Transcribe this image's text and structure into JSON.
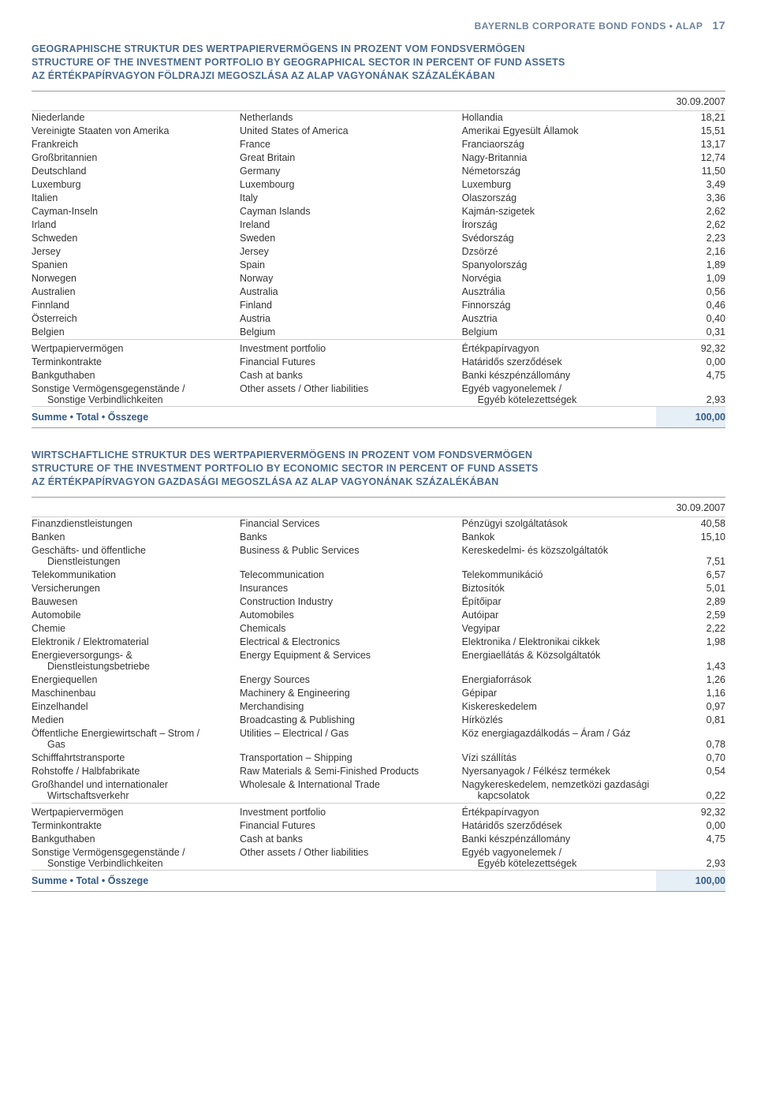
{
  "header": {
    "brand": "BAYERNLB CORPORATE BOND FONDS • ALAP",
    "page": "17"
  },
  "date": "30.09.2007",
  "sec1": {
    "title_de": "GEOGRAPHISCHE STRUKTUR DES WERTPAPIERVERMÖGENS IN PROZENT VOM FONDSVERMÖGEN",
    "title_en": "STRUCTURE OF THE INVESTMENT PORTFOLIO BY GEOGRAPHICAL SECTOR IN PERCENT OF FUND ASSETS",
    "title_hu": "AZ ÉRTÉKPAPÍRVAGYON FÖLDRAJZI MEGOSZLÁSA AZ ALAP VAGYONÁNAK SZÁZALÉKÁBAN",
    "rows": [
      {
        "de": "Niederlande",
        "en": "Netherlands",
        "hu": "Hollandia",
        "v": "18,21"
      },
      {
        "de": "Vereinigte Staaten von Amerika",
        "en": "United States of America",
        "hu": "Amerikai Egyesült Államok",
        "v": "15,51"
      },
      {
        "de": "Frankreich",
        "en": "France",
        "hu": "Franciaország",
        "v": "13,17"
      },
      {
        "de": "Großbritannien",
        "en": "Great Britain",
        "hu": "Nagy-Britannia",
        "v": "12,74"
      },
      {
        "de": "Deutschland",
        "en": "Germany",
        "hu": "Németország",
        "v": "11,50"
      },
      {
        "de": "Luxemburg",
        "en": "Luxembourg",
        "hu": "Luxemburg",
        "v": "3,49"
      },
      {
        "de": "Italien",
        "en": "Italy",
        "hu": "Olaszország",
        "v": "3,36"
      },
      {
        "de": "Cayman-Inseln",
        "en": "Cayman Islands",
        "hu": "Kajmán-szigetek",
        "v": "2,62"
      },
      {
        "de": "Irland",
        "en": "Ireland",
        "hu": "Írország",
        "v": "2,62"
      },
      {
        "de": "Schweden",
        "en": "Sweden",
        "hu": "Svédország",
        "v": "2,23"
      },
      {
        "de": "Jersey",
        "en": "Jersey",
        "hu": "Dzsörzé",
        "v": "2,16"
      },
      {
        "de": "Spanien",
        "en": "Spain",
        "hu": "Spanyolország",
        "v": "1,89"
      },
      {
        "de": "Norwegen",
        "en": "Norway",
        "hu": "Norvégia",
        "v": "1,09"
      },
      {
        "de": "Australien",
        "en": "Australia",
        "hu": "Ausztrália",
        "v": "0,56"
      },
      {
        "de": "Finnland",
        "en": "Finland",
        "hu": "Finnország",
        "v": "0,46"
      },
      {
        "de": "Österreich",
        "en": "Austria",
        "hu": "Ausztria",
        "v": "0,40"
      },
      {
        "de": "Belgien",
        "en": "Belgium",
        "hu": "Belgium",
        "v": "0,31"
      }
    ],
    "subs": [
      {
        "de": "Wertpapiervermögen",
        "en": "Investment portfolio",
        "hu": "Értékpapírvagyon",
        "v": "92,32"
      },
      {
        "de": "Terminkontrakte",
        "en": "Financial Futures",
        "hu": "Határidős szerződések",
        "v": "0,00"
      },
      {
        "de": "Bankguthaben",
        "en": "Cash at banks",
        "hu": "Banki készpénzállomány",
        "v": "4,75"
      },
      {
        "de": "Sonstige Vermögensgegenstände /",
        "de2": "Sonstige Verbindlichkeiten",
        "en": "Other assets / Other liabilities",
        "hu": "Egyéb vagyonelemek /",
        "hu2": "Egyéb kötelezettségek",
        "v": "2,93"
      }
    ],
    "sum": {
      "label": "Summe • Total • Ősszege",
      "v": "100,00"
    }
  },
  "sec2": {
    "title_de": "WIRTSCHAFTLICHE STRUKTUR DES WERTPAPIERVERMÖGENS IN PROZENT VOM FONDSVERMÖGEN",
    "title_en": "STRUCTURE OF THE INVESTMENT PORTFOLIO BY ECONOMIC SECTOR IN PERCENT OF FUND ASSETS",
    "title_hu": "AZ ÉRTÉKPAPÍRVAGYON GAZDASÁGI MEGOSZLÁSA AZ ALAP VAGYONÁNAK SZÁZALÉKÁBAN",
    "rows": [
      {
        "de": "Finanzdienstleistungen",
        "en": "Financial Services",
        "hu": "Pénzügyi szolgáltatások",
        "v": "40,58"
      },
      {
        "de": "Banken",
        "en": "Banks",
        "hu": "Bankok",
        "v": "15,10"
      },
      {
        "de": "Geschäfts- und öffentliche",
        "de2": "Dienstleistungen",
        "en": "Business & Public Services",
        "hu": "Kereskedelmi- és közszolgáltatók",
        "v": "7,51"
      },
      {
        "de": "Telekommunikation",
        "en": "Telecommunication",
        "hu": "Telekommunikáció",
        "v": "6,57"
      },
      {
        "de": "Versicherungen",
        "en": "Insurances",
        "hu": "Biztosítók",
        "v": "5,01"
      },
      {
        "de": "Bauwesen",
        "en": "Construction Industry",
        "hu": "Építőipar",
        "v": "2,89"
      },
      {
        "de": "Automobile",
        "en": "Automobiles",
        "hu": "Autóipar",
        "v": "2,59"
      },
      {
        "de": "Chemie",
        "en": "Chemicals",
        "hu": "Vegyipar",
        "v": "2,22"
      },
      {
        "de": "Elektronik / Elektromaterial",
        "en": "Electrical & Electronics",
        "hu": "Elektronika / Elektronikai cikkek",
        "v": "1,98"
      },
      {
        "de": "Energieversorgungs- &",
        "de2": "Dienstleistungsbetriebe",
        "en": "Energy Equipment & Services",
        "hu": "Energiaellátás & Közsolgáltatók",
        "v": "1,43"
      },
      {
        "de": "Energiequellen",
        "en": "Energy Sources",
        "hu": "Energiaforrások",
        "v": "1,26"
      },
      {
        "de": "Maschinenbau",
        "en": "Machinery & Engineering",
        "hu": "Gépipar",
        "v": "1,16"
      },
      {
        "de": "Einzelhandel",
        "en": "Merchandising",
        "hu": "Kiskereskedelem",
        "v": "0,97"
      },
      {
        "de": "Medien",
        "en": "Broadcasting & Publishing",
        "hu": "Hírközlés",
        "v": "0,81"
      },
      {
        "de": "Öffentliche Energiewirtschaft – Strom /",
        "de2": "Gas",
        "en": "Utilities – Electrical / Gas",
        "hu": "Köz energiagazdálkodás – Áram / Gáz",
        "v": "0,78"
      },
      {
        "de": "Schifffahrtstransporte",
        "en": "Transportation – Shipping",
        "hu": "Vízi szállítás",
        "v": "0,70"
      },
      {
        "de": "Rohstoffe / Halbfabrikate",
        "en": "Raw Materials & Semi-Finished Products",
        "hu": "Nyersanyagok / Félkész termékek",
        "v": "0,54"
      },
      {
        "de": "Großhandel und internationaler",
        "de2": "Wirtschaftsverkehr",
        "en": "Wholesale & International Trade",
        "hu": "Nagykereskedelem, nemzetközi gazdasági",
        "hu2": "kapcsolatok",
        "v": "0,22"
      }
    ],
    "subs": [
      {
        "de": "Wertpapiervermögen",
        "en": "Investment portfolio",
        "hu": "Értékpapírvagyon",
        "v": "92,32"
      },
      {
        "de": "Terminkontrakte",
        "en": "Financial Futures",
        "hu": "Határidős szerződések",
        "v": "0,00"
      },
      {
        "de": "Bankguthaben",
        "en": "Cash at banks",
        "hu": "Banki készpénzállomány",
        "v": "4,75"
      },
      {
        "de": "Sonstige Vermögensgegenstände /",
        "de2": "Sonstige Verbindlichkeiten",
        "en": "Other assets / Other liabilities",
        "hu": "Egyéb vagyonelemek /",
        "hu2": "Egyéb kötelezettségek",
        "v": "2,93"
      }
    ],
    "sum": {
      "label": "Summe • Total • Ősszege",
      "v": "100,00"
    }
  }
}
